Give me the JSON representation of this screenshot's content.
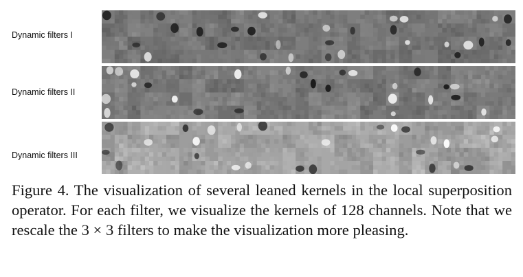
{
  "figure": {
    "rows": [
      {
        "label": "Dynamic filters I",
        "base_gray": "#767676",
        "contrast": 50,
        "dots": 4
      },
      {
        "label": "Dynamic filters II",
        "base_gray": "#7a7a7a",
        "contrast": 55,
        "dots": 4
      },
      {
        "label": "Dynamic filters III",
        "base_gray": "#a3a3a3",
        "contrast": 65,
        "dots": 5
      }
    ],
    "kernel_grid": {
      "columns": 32,
      "rows": 4
    },
    "caption": "Figure 4. The visualization of several leaned kernels in the local superposition operator. For each filter, we visualize the kernels of 128 channels. Note that we rescale the 3 × 3 filters to make the visualization more pleasing."
  }
}
